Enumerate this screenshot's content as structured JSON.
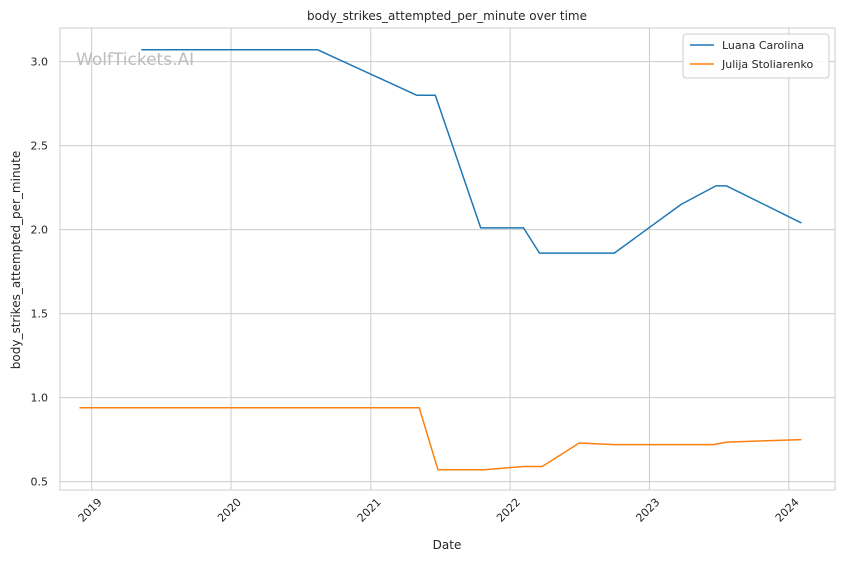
{
  "chart_data": {
    "type": "line",
    "title": "body_strikes_attempted_per_minute over time",
    "xlabel": "Date",
    "ylabel": "body_strikes_attempted_per_minute",
    "watermark": "WolfTickets.AI",
    "x_axis_type": "date",
    "xlim": [
      "2018-10-10",
      "2024-05-01"
    ],
    "ylim": [
      0.45,
      3.2
    ],
    "x_ticks": [
      "2019-01-01",
      "2020-01-01",
      "2021-01-01",
      "2022-01-01",
      "2023-01-01",
      "2024-01-01"
    ],
    "x_tick_labels": [
      "2019",
      "2020",
      "2021",
      "2022",
      "2023",
      "2024"
    ],
    "y_ticks": [
      0.5,
      1.0,
      1.5,
      2.0,
      2.5,
      3.0
    ],
    "y_tick_labels": [
      "0.5",
      "1.0",
      "1.5",
      "2.0",
      "2.5",
      "3.0"
    ],
    "grid": true,
    "legend_position": "top-right",
    "series": [
      {
        "name": "Luana Carolina",
        "color": "#1f77b4",
        "points": [
          [
            "2019-05-11",
            3.07
          ],
          [
            "2020-08-15",
            3.07
          ],
          [
            "2021-05-01",
            2.8
          ],
          [
            "2021-06-19",
            2.8
          ],
          [
            "2021-10-16",
            2.01
          ],
          [
            "2022-02-05",
            2.01
          ],
          [
            "2022-03-19",
            1.86
          ],
          [
            "2022-10-01",
            1.86
          ],
          [
            "2023-03-25",
            2.15
          ],
          [
            "2023-06-24",
            2.26
          ],
          [
            "2023-07-22",
            2.26
          ],
          [
            "2024-02-03",
            2.04
          ]
        ]
      },
      {
        "name": "Julija Stoliarenko",
        "color": "#ff7f0e",
        "points": [
          [
            "2018-11-30",
            0.94
          ],
          [
            "2021-05-08",
            0.94
          ],
          [
            "2021-06-26",
            0.57
          ],
          [
            "2021-10-23",
            0.57
          ],
          [
            "2022-02-05",
            0.59
          ],
          [
            "2022-03-26",
            0.59
          ],
          [
            "2022-07-01",
            0.73
          ],
          [
            "2022-10-01",
            0.72
          ],
          [
            "2023-06-17",
            0.72
          ],
          [
            "2023-07-22",
            0.735
          ],
          [
            "2024-02-03",
            0.75
          ]
        ]
      }
    ]
  },
  "colors": {
    "grid": "#cccccc",
    "axes_edge": "#cccccc",
    "text": "#262626",
    "watermark": "#bdbdbd"
  }
}
